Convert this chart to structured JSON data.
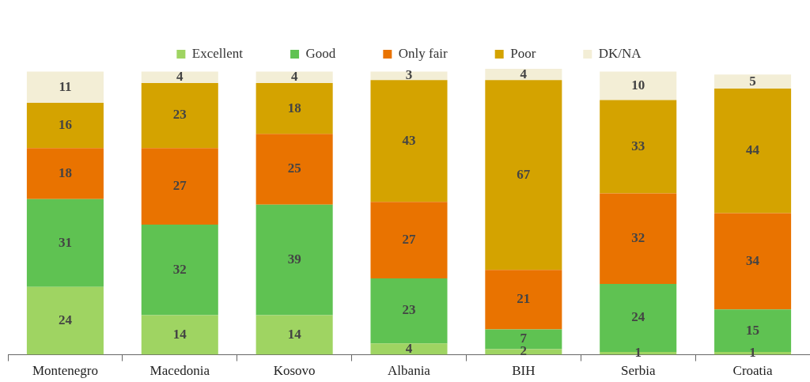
{
  "chart_data": {
    "type": "bar",
    "stacked": true,
    "legend": "top",
    "grid": false,
    "data_labels": true,
    "categories": [
      "Montenegro",
      "Macedonia",
      "Kosovo",
      "Albania",
      "BIH",
      "Serbia",
      "Croatia"
    ],
    "series": [
      {
        "name": "Excellent",
        "color": "#9fd462",
        "values": [
          24,
          14,
          14,
          4,
          2,
          1,
          1
        ]
      },
      {
        "name": "Good",
        "color": "#5fc252",
        "values": [
          31,
          32,
          39,
          23,
          7,
          24,
          15
        ]
      },
      {
        "name": "Only fair",
        "color": "#e97300",
        "values": [
          18,
          27,
          25,
          27,
          21,
          32,
          34
        ]
      },
      {
        "name": "Poor",
        "color": "#d4a300",
        "values": [
          16,
          23,
          18,
          43,
          67,
          33,
          44
        ]
      },
      {
        "name": "DK/NA",
        "color": "#f3eed6",
        "values": [
          11,
          4,
          4,
          3,
          4,
          10,
          5
        ]
      }
    ]
  }
}
